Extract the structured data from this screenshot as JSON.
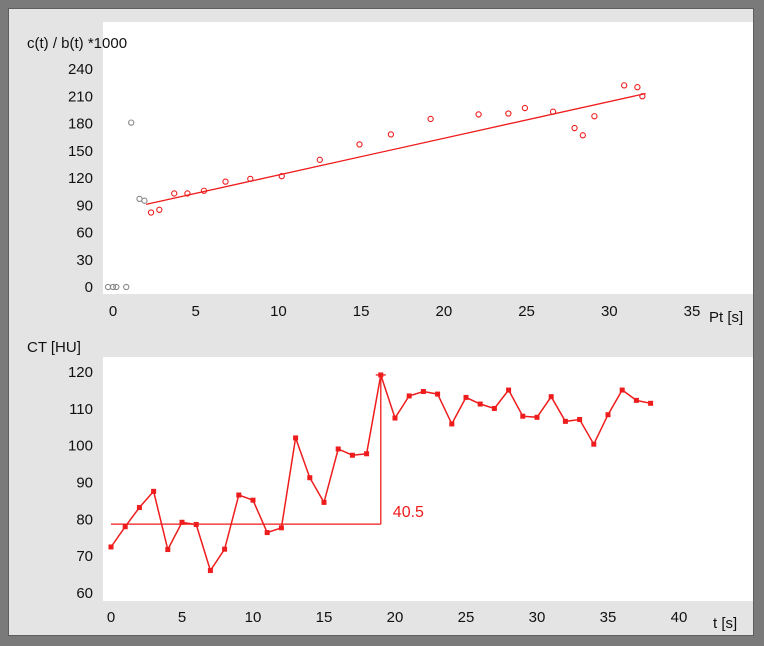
{
  "chart_data": [
    {
      "type": "scatter",
      "ylabel": "c(t) / b(t) *1000",
      "xlabel": "Pt [s]",
      "xlim": [
        -0.5,
        37
      ],
      "ylim": [
        -5,
        255
      ],
      "xticks": [
        0,
        5,
        10,
        15,
        20,
        25,
        30,
        35
      ],
      "yticks": [
        0,
        30,
        60,
        90,
        120,
        150,
        180,
        210,
        240
      ],
      "grid": false,
      "series": [
        {
          "color": "#888888",
          "points": [
            [
              -0.3,
              0
            ],
            [
              0.0,
              0
            ],
            [
              0.2,
              0
            ],
            [
              0.8,
              0
            ],
            [
              1.1,
              181
            ],
            [
              1.6,
              97
            ],
            [
              1.9,
              95
            ]
          ]
        },
        {
          "color": "#ee1c1c",
          "points": [
            [
              2.3,
              82
            ],
            [
              2.8,
              85
            ],
            [
              3.7,
              103
            ],
            [
              4.5,
              103
            ],
            [
              5.5,
              106
            ],
            [
              6.8,
              116
            ],
            [
              8.3,
              119
            ],
            [
              10.2,
              122
            ],
            [
              12.5,
              140
            ],
            [
              14.9,
              157
            ],
            [
              16.8,
              168
            ],
            [
              19.2,
              185
            ],
            [
              22.1,
              190
            ],
            [
              23.9,
              191
            ],
            [
              24.9,
              197
            ],
            [
              26.6,
              193
            ],
            [
              27.9,
              175
            ],
            [
              28.4,
              167
            ],
            [
              29.1,
              188
            ],
            [
              30.9,
              222
            ],
            [
              31.7,
              220
            ],
            [
              32.0,
              210
            ]
          ]
        }
      ],
      "fit_line": {
        "color": "#ee1c1c",
        "from": [
          2.0,
          91
        ],
        "to": [
          32.2,
          213
        ]
      }
    },
    {
      "type": "line",
      "ylabel": "CT [HU]",
      "xlabel": "t [s]",
      "xlim": [
        -0.2,
        42
      ],
      "ylim": [
        58,
        123
      ],
      "xticks": [
        0,
        5,
        10,
        15,
        20,
        25,
        30,
        35,
        40
      ],
      "yticks": [
        60,
        70,
        80,
        90,
        100,
        110,
        120
      ],
      "grid": false,
      "series": [
        {
          "color": "#ee1c1c",
          "x": [
            0,
            1,
            2,
            3,
            4,
            5,
            6,
            7,
            8,
            9,
            10,
            11,
            12,
            13,
            14,
            15,
            16,
            17,
            18,
            19,
            20,
            21,
            22,
            23,
            24,
            25,
            26,
            27,
            28,
            29,
            30,
            31,
            32,
            33,
            34,
            35,
            36,
            37,
            38
          ],
          "y": [
            72.5,
            78,
            83.2,
            87.6,
            71.8,
            79.2,
            78.6,
            66.1,
            71.9,
            86.6,
            85.2,
            76.4,
            77.7,
            102.1,
            91.3,
            84.6,
            99.1,
            97.4,
            97.8,
            119.2,
            107.5,
            113.5,
            114.7,
            114,
            105.9,
            113.1,
            111.3,
            110.1,
            115.1,
            108,
            107.7,
            113.3,
            106.6,
            107.1,
            100.4,
            108.4,
            115.1,
            112.3,
            111.5
          ]
        }
      ],
      "annotation": {
        "label": "40.5",
        "color": "#ee1c1c",
        "baseline_y": 78.7,
        "baseline_x": [
          0,
          19
        ],
        "peak_x": 19,
        "peak_y": 119.2
      }
    }
  ]
}
